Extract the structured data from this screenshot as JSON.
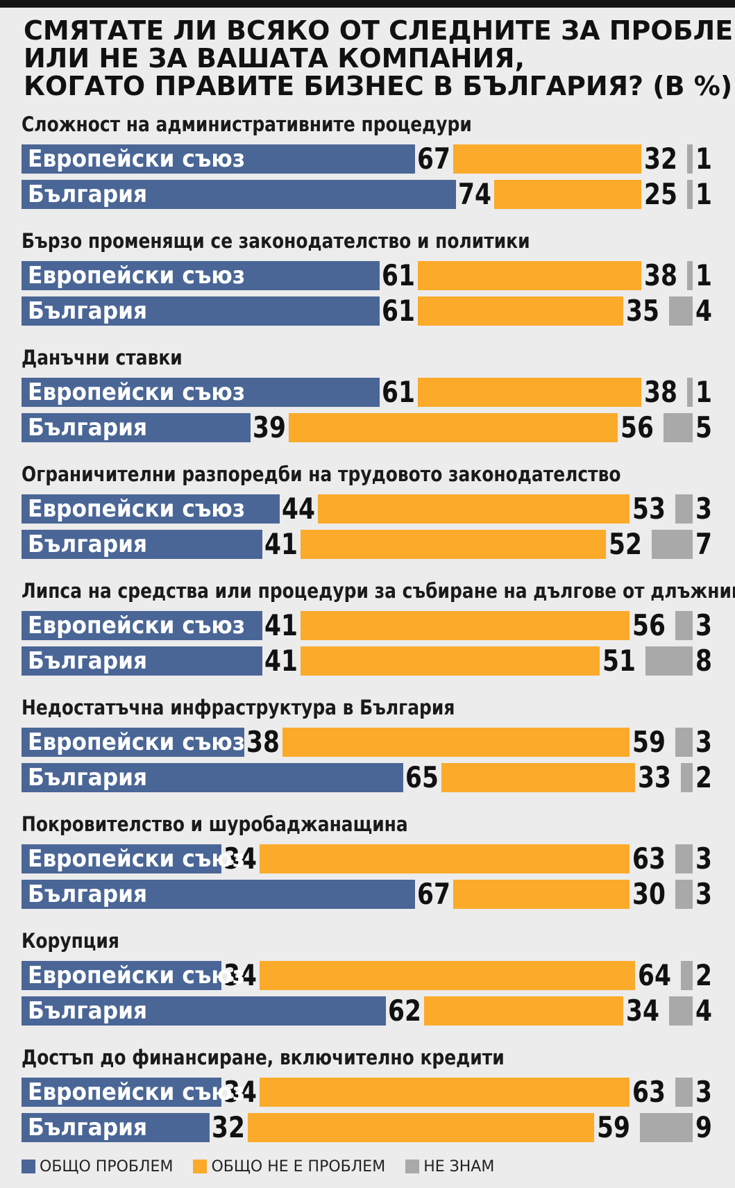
{
  "chart_data": {
    "type": "bar",
    "title_lines": [
      "СМЯТАТЕ ЛИ ВСЯКО ОТ СЛЕДНИТЕ ЗА ПРОБЛЕМ",
      "ИЛИ НЕ ЗА ВАШАТА КОМПАНИЯ,",
      "КОГАТО ПРАВИТЕ БИЗНЕС В БЪЛГАРИЯ? (В %)"
    ],
    "stacked": true,
    "orientation": "horizontal",
    "series": [
      {
        "name": "ОБЩО ПРОБЛЕМ",
        "color": "#4a6696"
      },
      {
        "name": "ОБЩО НЕ Е ПРОБЛЕМ",
        "color": "#fbaa2a"
      },
      {
        "name": "НЕ ЗНАМ",
        "color": "#a9a9a9"
      }
    ],
    "groups": [
      {
        "label": "Сложност на административните процедури",
        "rows": [
          {
            "label": "Европейски съюз",
            "values": [
              67,
              32,
              1
            ]
          },
          {
            "label": "България",
            "values": [
              74,
              25,
              1
            ]
          }
        ]
      },
      {
        "label": "Бързо променящи се законодателство и политики",
        "rows": [
          {
            "label": "Европейски съюз",
            "values": [
              61,
              38,
              1
            ]
          },
          {
            "label": "България",
            "values": [
              61,
              35,
              4
            ]
          }
        ]
      },
      {
        "label": "Данъчни ставки",
        "rows": [
          {
            "label": "Европейски съюз",
            "values": [
              61,
              38,
              1
            ]
          },
          {
            "label": "България",
            "values": [
              39,
              56,
              5
            ]
          }
        ]
      },
      {
        "label": "Ограничителни разпоредби на трудовото законодателство",
        "rows": [
          {
            "label": "Европейски съюз",
            "values": [
              44,
              53,
              3
            ]
          },
          {
            "label": "България",
            "values": [
              41,
              52,
              7
            ]
          }
        ]
      },
      {
        "label": "Липса на средства или процедури за събиране на дългове от длъжници",
        "rows": [
          {
            "label": "Европейски съюз",
            "values": [
              41,
              56,
              3
            ]
          },
          {
            "label": "България",
            "values": [
              41,
              51,
              8
            ]
          }
        ]
      },
      {
        "label": "Недостатъчна инфраструктура в България",
        "rows": [
          {
            "label": "Европейски съюз",
            "values": [
              38,
              59,
              3
            ]
          },
          {
            "label": "България",
            "values": [
              65,
              33,
              2
            ]
          }
        ]
      },
      {
        "label": "Покровителство и шуробаджанащина",
        "rows": [
          {
            "label": "Европейски съюз",
            "values": [
              34,
              63,
              3
            ]
          },
          {
            "label": "България",
            "values": [
              67,
              30,
              3
            ]
          }
        ]
      },
      {
        "label": "Корупция",
        "rows": [
          {
            "label": "Европейски съюз",
            "values": [
              34,
              64,
              2
            ]
          },
          {
            "label": "България",
            "values": [
              62,
              34,
              4
            ]
          }
        ]
      },
      {
        "label": "Достъп до финансиране, включително кредити",
        "rows": [
          {
            "label": "Европейски съюз",
            "values": [
              34,
              63,
              3
            ]
          },
          {
            "label": "България",
            "values": [
              32,
              59,
              9
            ]
          }
        ]
      }
    ]
  }
}
